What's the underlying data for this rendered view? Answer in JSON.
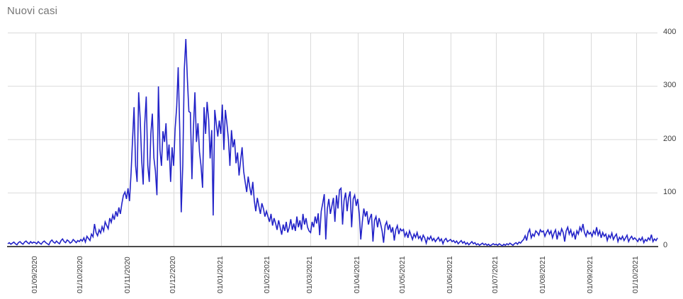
{
  "chart_data": {
    "type": "line",
    "title": "Nuovi casi",
    "xlabel": "",
    "ylabel": "",
    "ylim": [
      0,
      400
    ],
    "grid": true,
    "legend": "none",
    "series_color": "#2323c8",
    "gridline_color": "#dadada",
    "axis_color": "#4a4a4a",
    "title_color": "#757575",
    "tick_label_color": "#3c3c3c",
    "y_ticks": [
      {
        "label": "400",
        "value": 400
      },
      {
        "label": "300",
        "value": 300
      },
      {
        "label": "200",
        "value": 200
      },
      {
        "label": "100",
        "value": 100
      },
      {
        "label": "0",
        "value": 0
      }
    ],
    "x_ticks": [
      {
        "label": "01/09/2020",
        "day": 18
      },
      {
        "label": "01/10/2020",
        "day": 48
      },
      {
        "label": "01/11/2020",
        "day": 79
      },
      {
        "label": "01/12/2020",
        "day": 109
      },
      {
        "label": "01/01/2021",
        "day": 140
      },
      {
        "label": "01/02/2021",
        "day": 171
      },
      {
        "label": "01/03/2021",
        "day": 199
      },
      {
        "label": "01/04/2021",
        "day": 230
      },
      {
        "label": "01/05/2021",
        "day": 260
      },
      {
        "label": "01/06/2021",
        "day": 291
      },
      {
        "label": "01/07/2021",
        "day": 321
      },
      {
        "label": "01/08/2021",
        "day": 352
      },
      {
        "label": "01/09/2021",
        "day": 383
      },
      {
        "label": "01/10/2021",
        "day": 413
      }
    ],
    "values": [
      4,
      6,
      3,
      5,
      7,
      4,
      2,
      6,
      8,
      5,
      3,
      7,
      9,
      6,
      4,
      8,
      5,
      7,
      6,
      4,
      8,
      5,
      3,
      7,
      9,
      6,
      4,
      2,
      8,
      11,
      7,
      5,
      9,
      6,
      4,
      10,
      13,
      8,
      6,
      11,
      9,
      5,
      7,
      12,
      9,
      6,
      10,
      8,
      12,
      9,
      15,
      7,
      18,
      14,
      10,
      22,
      17,
      41,
      25,
      19,
      30,
      24,
      36,
      28,
      45,
      38,
      32,
      52,
      44,
      58,
      49,
      65,
      55,
      72,
      60,
      80,
      95,
      101,
      88,
      108,
      84,
      137,
      200,
      260,
      150,
      120,
      288,
      240,
      160,
      115,
      230,
      280,
      150,
      120,
      210,
      248,
      165,
      141,
      95,
      299,
      180,
      150,
      215,
      195,
      230,
      160,
      190,
      120,
      185,
      150,
      220,
      261,
      335,
      217,
      63,
      152,
      330,
      388,
      315,
      252,
      250,
      125,
      221,
      288,
      195,
      230,
      176,
      150,
      109,
      260,
      210,
      270,
      237,
      164,
      217,
      57,
      255,
      230,
      205,
      235,
      210,
      265,
      180,
      255,
      230,
      200,
      150,
      217,
      185,
      200,
      155,
      175,
      132,
      160,
      185,
      140,
      120,
      101,
      130,
      110,
      95,
      120,
      85,
      65,
      90,
      75,
      60,
      80,
      70,
      55,
      65,
      55,
      45,
      60,
      38,
      52,
      42,
      30,
      48,
      35,
      21,
      40,
      28,
      45,
      25,
      35,
      50,
      30,
      42,
      28,
      55,
      35,
      48,
      30,
      60,
      40,
      52,
      35,
      28,
      25,
      45,
      35,
      55,
      42,
      61,
      20,
      65,
      80,
      97,
      12,
      70,
      88,
      60,
      75,
      90,
      45,
      95,
      70,
      105,
      108,
      40,
      85,
      100,
      65,
      90,
      102,
      35,
      88,
      95,
      75,
      88,
      60,
      12,
      45,
      70,
      55,
      65,
      40,
      52,
      60,
      8,
      48,
      55,
      35,
      52,
      42,
      28,
      6,
      38,
      45,
      30,
      40,
      25,
      35,
      10,
      30,
      38,
      22,
      32,
      28,
      31,
      18,
      25,
      15,
      28,
      20,
      12,
      22,
      16,
      25,
      14,
      18,
      10,
      20,
      15,
      5,
      16,
      12,
      18,
      10,
      14,
      8,
      12,
      16,
      9,
      13,
      4,
      11,
      14,
      8,
      10,
      12,
      8,
      10,
      6,
      9,
      4,
      7,
      10,
      5,
      8,
      3,
      6,
      2,
      5,
      8,
      4,
      6,
      2,
      4,
      1,
      3,
      5,
      2,
      4,
      1,
      3,
      0,
      2,
      4,
      2,
      3,
      1,
      4,
      2,
      0,
      3,
      1,
      4,
      2,
      5,
      3,
      1,
      4,
      6,
      3,
      7,
      5,
      9,
      12,
      19,
      10,
      25,
      31,
      15,
      22,
      18,
      28,
      25,
      20,
      30,
      26,
      28,
      18,
      25,
      30,
      22,
      28,
      15,
      24,
      30,
      12,
      26,
      20,
      32,
      25,
      8,
      28,
      35,
      22,
      30,
      18,
      25,
      12,
      28,
      22,
      35,
      28,
      41,
      25,
      18,
      28,
      22,
      25,
      18,
      28,
      22,
      35,
      20,
      28,
      15,
      25,
      18,
      22,
      10,
      20,
      15,
      24,
      12,
      18,
      22,
      8,
      16,
      12,
      18,
      10,
      15,
      20,
      8,
      14,
      18,
      12,
      15,
      12,
      8,
      14,
      10,
      16,
      6,
      12,
      9,
      15,
      11,
      21,
      8,
      13,
      10,
      15
    ]
  }
}
